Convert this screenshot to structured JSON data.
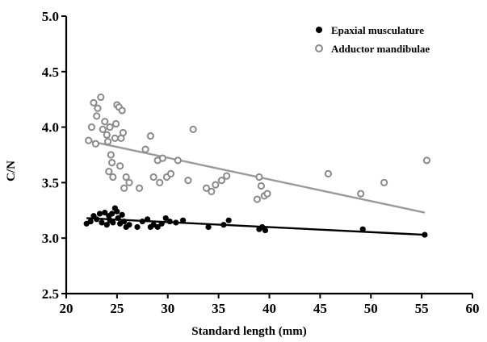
{
  "chart_data": {
    "type": "scatter",
    "xlabel": "Standard length (mm)",
    "ylabel": "C/N",
    "xlim": [
      20,
      60
    ],
    "ylim": [
      2.5,
      5.0
    ],
    "x_ticks": [
      "20",
      "25",
      "30",
      "35",
      "40",
      "45",
      "50",
      "55",
      "60"
    ],
    "y_ticks": [
      "2.5",
      "3.0",
      "3.5",
      "4.0",
      "4.5",
      "5.0"
    ],
    "grid": false,
    "legend_position": "top-right",
    "series": [
      {
        "name": "Epaxial musculature",
        "marker": "filled-circle",
        "color": "#000000",
        "trend_color": "#000000",
        "trend": [
          [
            22,
            3.18
          ],
          [
            55.3,
            3.03
          ]
        ],
        "points": [
          [
            22.0,
            3.13
          ],
          [
            22.4,
            3.15
          ],
          [
            22.7,
            3.2
          ],
          [
            23.0,
            3.17
          ],
          [
            23.3,
            3.22
          ],
          [
            23.5,
            3.14
          ],
          [
            23.8,
            3.23
          ],
          [
            24.0,
            3.12
          ],
          [
            24.2,
            3.2
          ],
          [
            24.3,
            3.16
          ],
          [
            24.5,
            3.22
          ],
          [
            24.6,
            3.14
          ],
          [
            24.8,
            3.27
          ],
          [
            25.0,
            3.24
          ],
          [
            25.1,
            3.18
          ],
          [
            25.3,
            3.13
          ],
          [
            25.5,
            3.21
          ],
          [
            25.7,
            3.15
          ],
          [
            25.9,
            3.1
          ],
          [
            26.2,
            3.12
          ],
          [
            27.0,
            3.1
          ],
          [
            27.5,
            3.15
          ],
          [
            28.0,
            3.17
          ],
          [
            28.3,
            3.1
          ],
          [
            28.6,
            3.12
          ],
          [
            29.0,
            3.1
          ],
          [
            29.4,
            3.13
          ],
          [
            29.8,
            3.18
          ],
          [
            30.2,
            3.15
          ],
          [
            30.8,
            3.14
          ],
          [
            31.5,
            3.16
          ],
          [
            34.0,
            3.1
          ],
          [
            35.5,
            3.12
          ],
          [
            36.0,
            3.16
          ],
          [
            39.0,
            3.08
          ],
          [
            39.3,
            3.1
          ],
          [
            39.6,
            3.07
          ],
          [
            49.2,
            3.08
          ],
          [
            55.3,
            3.03
          ]
        ]
      },
      {
        "name": "Adductor mandibulae",
        "marker": "open-circle",
        "color": "#8a8a8a",
        "trend_color": "#9a9a9a",
        "trend": [
          [
            22,
            3.88
          ],
          [
            55.3,
            3.23
          ]
        ],
        "points": [
          [
            22.2,
            3.88
          ],
          [
            22.5,
            4.0
          ],
          [
            22.7,
            4.22
          ],
          [
            22.9,
            3.85
          ],
          [
            23.0,
            4.1
          ],
          [
            23.1,
            4.17
          ],
          [
            23.4,
            4.27
          ],
          [
            23.6,
            3.98
          ],
          [
            23.8,
            4.05
          ],
          [
            24.0,
            3.93
          ],
          [
            24.1,
            3.87
          ],
          [
            24.2,
            3.6
          ],
          [
            24.3,
            4.0
          ],
          [
            24.4,
            3.75
          ],
          [
            24.5,
            3.68
          ],
          [
            24.6,
            3.55
          ],
          [
            24.8,
            3.9
          ],
          [
            24.9,
            4.03
          ],
          [
            25.0,
            4.2
          ],
          [
            25.2,
            4.18
          ],
          [
            25.3,
            3.65
          ],
          [
            25.4,
            3.9
          ],
          [
            25.5,
            4.15
          ],
          [
            25.6,
            3.95
          ],
          [
            25.7,
            3.45
          ],
          [
            25.9,
            3.55
          ],
          [
            26.2,
            3.5
          ],
          [
            27.2,
            3.45
          ],
          [
            27.8,
            3.8
          ],
          [
            28.3,
            3.92
          ],
          [
            28.6,
            3.55
          ],
          [
            29.0,
            3.7
          ],
          [
            29.2,
            3.5
          ],
          [
            29.5,
            3.72
          ],
          [
            29.9,
            3.55
          ],
          [
            30.3,
            3.58
          ],
          [
            31.0,
            3.7
          ],
          [
            32.0,
            3.52
          ],
          [
            32.5,
            3.98
          ],
          [
            33.8,
            3.45
          ],
          [
            34.3,
            3.42
          ],
          [
            34.7,
            3.48
          ],
          [
            35.3,
            3.52
          ],
          [
            35.8,
            3.56
          ],
          [
            38.8,
            3.35
          ],
          [
            39.0,
            3.55
          ],
          [
            39.2,
            3.47
          ],
          [
            39.5,
            3.38
          ],
          [
            39.8,
            3.4
          ],
          [
            45.8,
            3.58
          ],
          [
            49.0,
            3.4
          ],
          [
            51.3,
            3.5
          ],
          [
            55.5,
            3.7
          ]
        ]
      }
    ]
  }
}
